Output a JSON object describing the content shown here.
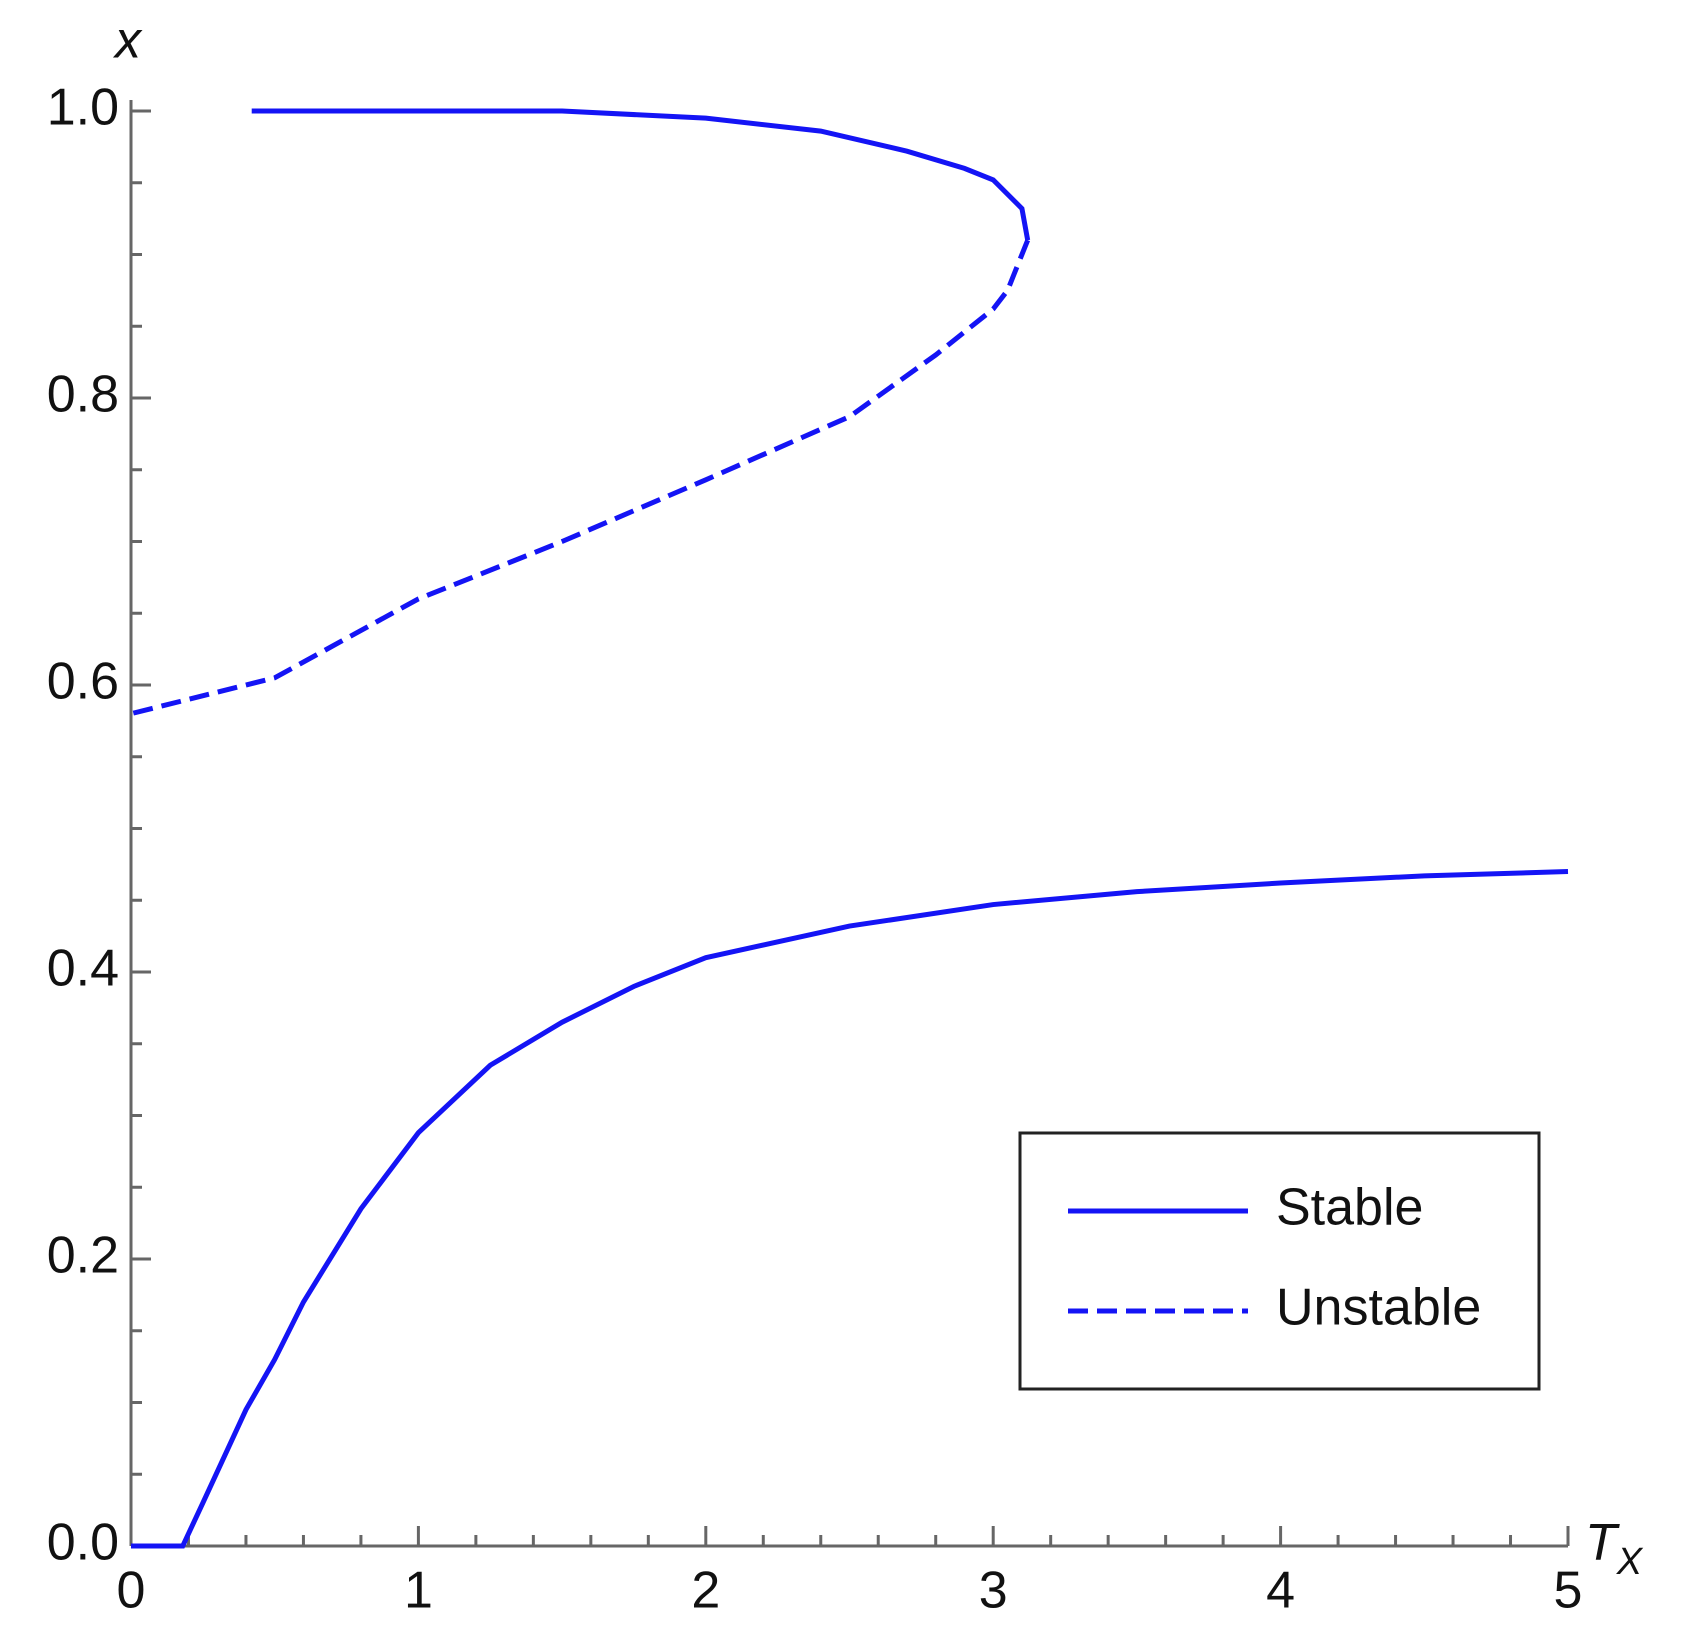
{
  "chart_data": {
    "type": "line",
    "xlabel": {
      "text": "T",
      "subscript": "X"
    },
    "ylabel": "x",
    "xlim": [
      0,
      5
    ],
    "ylim": [
      0,
      1
    ],
    "xticks": [
      0,
      1,
      2,
      3,
      4,
      5
    ],
    "yticks": [
      {
        "value": 0,
        "label": "0.0"
      },
      0.2,
      0.4,
      0.6,
      0.8,
      {
        "value": 1,
        "label": "1.0"
      }
    ],
    "minor_xticks": [
      0.2,
      0.4,
      0.6,
      0.8,
      1.2,
      1.4,
      1.6,
      1.8,
      2.2,
      2.4,
      2.6,
      2.8,
      3.2,
      3.4,
      3.6,
      3.8,
      4.2,
      4.4,
      4.6,
      4.8
    ],
    "minor_yticks": [
      0.05,
      0.1,
      0.15,
      0.25,
      0.3,
      0.35,
      0.45,
      0.5,
      0.55,
      0.65,
      0.7,
      0.75,
      0.85,
      0.9,
      0.95
    ],
    "legend": "lower right",
    "series": [
      {
        "name": "Stable",
        "color": "#1414f5",
        "style": "solid",
        "x": [
          0.42,
          1.0,
          1.5,
          2.0,
          2.4,
          2.7,
          2.9,
          3.0,
          3.1,
          3.12,
          null,
          0,
          0.18,
          0.25,
          0.4,
          0.5,
          0.6,
          0.8,
          1.0,
          1.25,
          1.5,
          1.75,
          2.0,
          2.5,
          3.0,
          3.5,
          4.0,
          4.5,
          5.0
        ],
        "values": [
          1.0,
          1.0,
          1.0,
          0.995,
          0.986,
          0.972,
          0.96,
          0.952,
          0.932,
          0.91,
          null,
          0,
          0,
          0.03,
          0.095,
          0.13,
          0.17,
          0.235,
          0.288,
          0.335,
          0.365,
          0.39,
          0.41,
          0.432,
          0.447,
          0.456,
          0.462,
          0.467,
          0.47
        ]
      },
      {
        "name": "Unstable",
        "color": "#1414f5",
        "style": "dashed",
        "x": [
          3.12,
          3.05,
          3.0,
          2.8,
          2.5,
          2.0,
          1.5,
          1.0,
          0.5,
          0
        ],
        "values": [
          0.91,
          0.875,
          0.862,
          0.83,
          0.787,
          0.743,
          0.7,
          0.66,
          0.605,
          0.58
        ]
      }
    ]
  }
}
